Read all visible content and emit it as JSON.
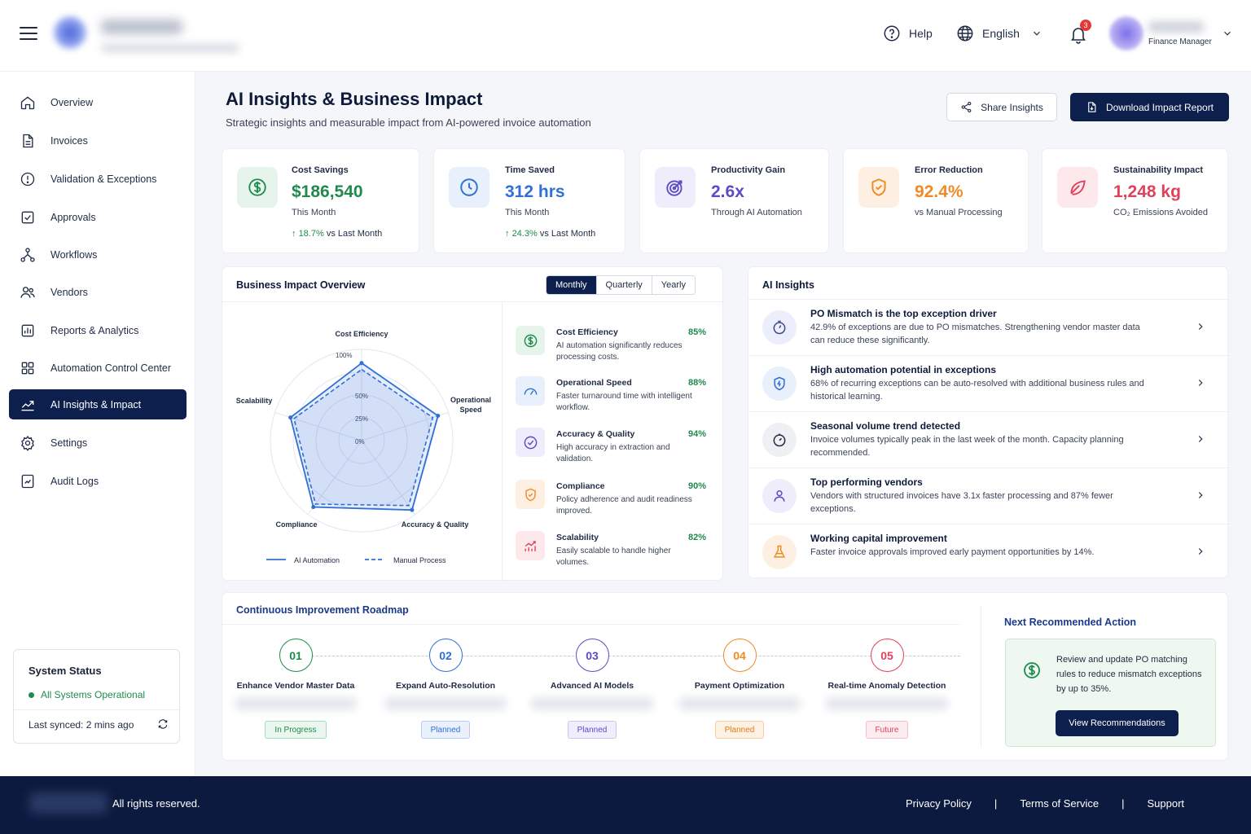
{
  "header": {
    "help_label": "Help",
    "language_label": "English",
    "notification_count": "3",
    "user_role": "Finance Manager"
  },
  "sidebar": {
    "items": [
      {
        "label": "Overview",
        "icon": "home-icon"
      },
      {
        "label": "Invoices",
        "icon": "document-icon"
      },
      {
        "label": "Validation & Exceptions",
        "icon": "alert-circle-icon"
      },
      {
        "label": "Approvals",
        "icon": "check-square-icon"
      },
      {
        "label": "Workflows",
        "icon": "workflow-icon"
      },
      {
        "label": "Vendors",
        "icon": "users-icon"
      },
      {
        "label": "Reports & Analytics",
        "icon": "chart-report-icon"
      },
      {
        "label": "Automation Control Center",
        "icon": "grid-icon"
      },
      {
        "label": "AI Insights & Impact",
        "icon": "trend-chart-icon"
      },
      {
        "label": "Settings",
        "icon": "gear-icon"
      },
      {
        "label": "Audit Logs",
        "icon": "audit-icon"
      }
    ],
    "active_index": 8,
    "status": {
      "title": "System Status",
      "state": "All Systems Operational",
      "synced": "Last synced: 2 mins ago"
    }
  },
  "page": {
    "title": "AI Insights & Business Impact",
    "subtitle": "Strategic insights and measurable impact from AI-powered invoice automation",
    "share_label": "Share Insights",
    "download_label": "Download Impact Report"
  },
  "kpis": [
    {
      "label": "Cost Savings",
      "value": "$186,540",
      "note": "This Month",
      "trend": "18.7%",
      "trend_suffix": "vs Last Month",
      "color": "#1f8a4c"
    },
    {
      "label": "Time Saved",
      "value": "312 hrs",
      "note": "This Month",
      "trend": "24.3%",
      "trend_suffix": "vs Last Month",
      "color": "#2f6fd6"
    },
    {
      "label": "Productivity Gain",
      "value": "2.6x",
      "note": "Through AI Automation",
      "color": "#5b4bc4"
    },
    {
      "label": "Error Reduction",
      "value": "92.4%",
      "note": "vs Manual Processing",
      "color": "#f08a24"
    },
    {
      "label": "Sustainability Impact",
      "value": "1,248 kg",
      "note": "CO₂ Emissions Avoided",
      "color": "#e0415a"
    }
  ],
  "impact": {
    "title": "Business Impact Overview",
    "tabs": [
      "Monthly",
      "Quarterly",
      "Yearly"
    ],
    "active_tab": "Monthly",
    "radar": {
      "axes": [
        "Cost Efficiency",
        "Operational Speed",
        "Accuracy & Quality",
        "Compliance",
        "Scalability"
      ],
      "ring_labels": [
        "100%",
        "50%",
        "25%",
        "0%"
      ],
      "ai_values": [
        85,
        88,
        94,
        90,
        82
      ],
      "manual_values": [
        78,
        82,
        88,
        86,
        78
      ],
      "legend_ai": "AI Automation",
      "legend_manual": "Manual Process"
    },
    "metrics": [
      {
        "name": "Cost Efficiency",
        "pct": "85%",
        "desc": "AI automation significantly reduces processing costs."
      },
      {
        "name": "Operational Speed",
        "pct": "88%",
        "desc": "Faster turnaround time with intelligent workflow."
      },
      {
        "name": "Accuracy & Quality",
        "pct": "94%",
        "desc": "High accuracy in extraction and validation."
      },
      {
        "name": "Compliance",
        "pct": "90%",
        "desc": "Policy adherence and audit readiness improved."
      },
      {
        "name": "Scalability",
        "pct": "82%",
        "desc": "Easily scalable to handle higher volumes."
      }
    ]
  },
  "insights": {
    "title": "AI Insights",
    "items": [
      {
        "title": "PO Mismatch is the top exception driver",
        "desc": "42.9% of exceptions are due to PO mismatches. Strengthening vendor master data can reduce these significantly."
      },
      {
        "title": "High automation potential in exceptions",
        "desc": "68% of recurring exceptions can be auto-resolved with additional business rules and historical learning."
      },
      {
        "title": "Seasonal volume trend detected",
        "desc": "Invoice volumes typically peak in the last week of the month. Capacity planning recommended."
      },
      {
        "title": "Top performing vendors",
        "desc": "Vendors with structured invoices have 3.1x faster processing and 87% fewer exceptions."
      },
      {
        "title": "Working capital improvement",
        "desc": "Faster invoice approvals improved early payment opportunities by 14%."
      }
    ]
  },
  "roadmap": {
    "title": "Continuous Improvement Roadmap",
    "steps": [
      {
        "num": "01",
        "name": "Enhance Vendor Master Data",
        "status": "In Progress",
        "color": "#1f8a4c"
      },
      {
        "num": "02",
        "name": "Expand Auto-Resolution",
        "status": "Planned",
        "color": "#2f6fd6"
      },
      {
        "num": "03",
        "name": "Advanced AI Models",
        "status": "Planned",
        "color": "#5b4bc4"
      },
      {
        "num": "04",
        "name": "Payment Optimization",
        "status": "Planned",
        "color": "#f08a24"
      },
      {
        "num": "05",
        "name": "Real-time Anomaly Detection",
        "status": "Future",
        "color": "#e0415a"
      }
    ],
    "next_title": "Next Recommended Action",
    "next_text": "Review and update PO matching rules to reduce mismatch exceptions by up to 35%.",
    "next_button": "View Recommendations"
  },
  "footer": {
    "rights": "All rights reserved.",
    "links": [
      "Privacy Policy",
      "Terms of Service",
      "Support"
    ]
  }
}
